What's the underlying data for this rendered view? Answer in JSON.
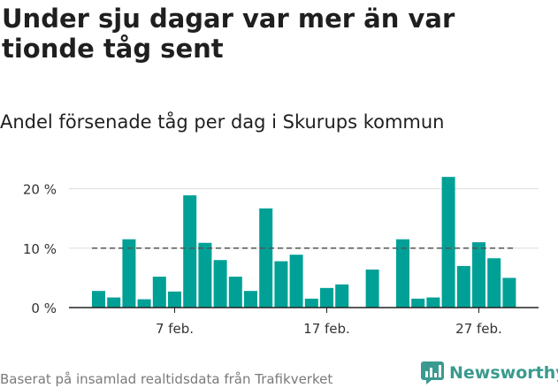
{
  "title": "Under sju dagar var mer än var tionde tåg sent",
  "subtitle": "Andel försenade tåg per dag i Skurups kommun",
  "footer": "Baserat på insamlad realtidsdata från Trafikverket",
  "brand": {
    "name": "Newsworthy",
    "icon": "bar-chart-icon",
    "color": "#3a9a8f"
  },
  "chart_data": {
    "type": "bar",
    "bar_color": "#00a096",
    "reference_line": {
      "value": 10,
      "style": "dashed",
      "color": "#555555"
    },
    "ylim": [
      0,
      22
    ],
    "yticks": [
      0,
      10,
      20
    ],
    "ytick_labels": [
      "0 %",
      "10 %",
      "20 %"
    ],
    "xtick_labels": [
      {
        "day": 7,
        "label": "7 feb."
      },
      {
        "day": 17,
        "label": "17 feb."
      },
      {
        "day": 27,
        "label": "27 feb."
      }
    ],
    "grid": true,
    "days": [
      2,
      3,
      4,
      5,
      6,
      7,
      8,
      9,
      10,
      11,
      12,
      13,
      14,
      15,
      16,
      17,
      18,
      19,
      20,
      21,
      22,
      23,
      24,
      25,
      26,
      27,
      28,
      29
    ],
    "values": [
      2.8,
      1.7,
      11.5,
      1.4,
      5.2,
      2.7,
      18.9,
      10.9,
      8.0,
      5.2,
      2.8,
      16.7,
      7.8,
      8.9,
      1.5,
      3.3,
      3.9,
      0,
      6.4,
      0,
      11.5,
      1.5,
      1.7,
      22.0,
      7.0,
      11.0,
      8.3,
      5.0
    ]
  }
}
